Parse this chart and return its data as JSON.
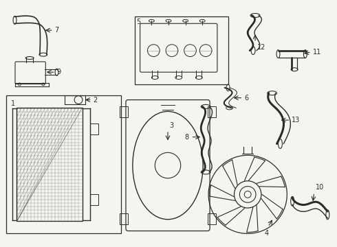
{
  "bg_color": "#f5f5f0",
  "lc": "#2a2a2a",
  "lw": 0.8,
  "fs": 7,
  "fig_w": 4.9,
  "fig_h": 3.6,
  "dpi": 100
}
